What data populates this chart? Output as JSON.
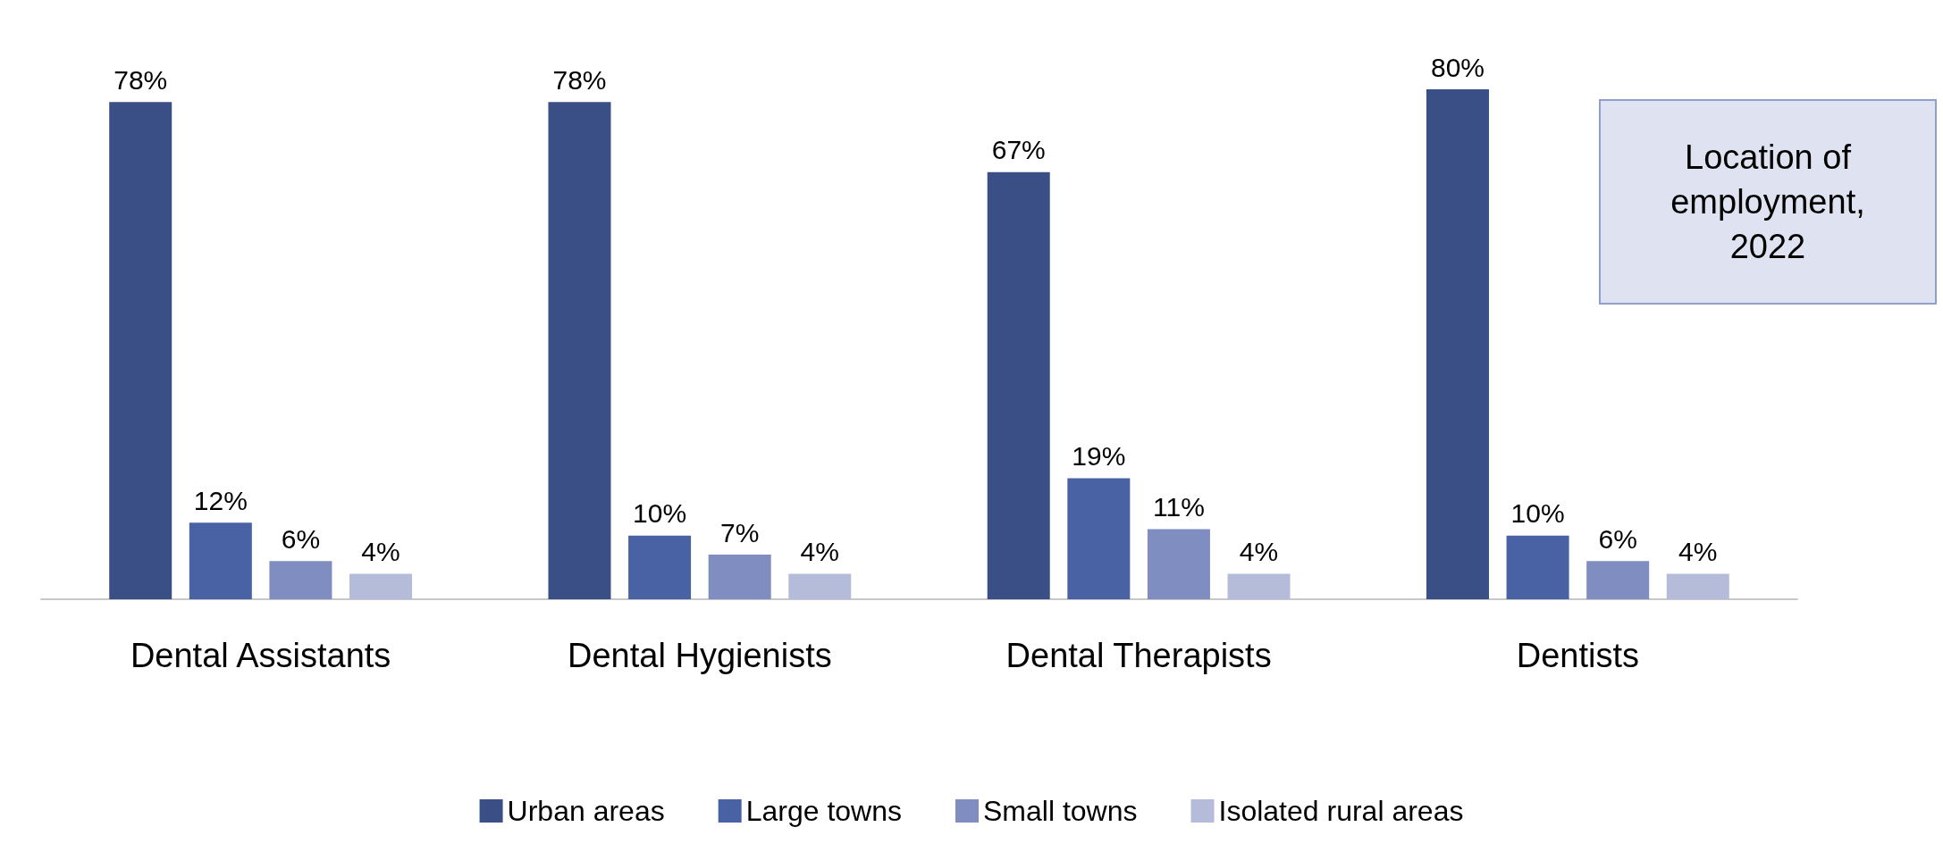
{
  "chart_data": {
    "type": "bar",
    "title": "Location of employment, 2022",
    "categories": [
      "Dental Assistants",
      "Dental Hygienists",
      "Dental Therapists",
      "Dentists"
    ],
    "series": [
      {
        "name": "Urban areas",
        "color": "#3a4f85",
        "values": [
          78,
          78,
          67,
          80
        ],
        "value_labels": [
          "78%",
          "78%",
          "67%",
          "80%"
        ]
      },
      {
        "name": "Large towns",
        "color": "#4862a3",
        "values": [
          12,
          10,
          19,
          10
        ],
        "value_labels": [
          "12%",
          "10%",
          "19%",
          "10%"
        ]
      },
      {
        "name": "Small towns",
        "color": "#7f8dc0",
        "values": [
          6,
          7,
          11,
          6
        ],
        "value_labels": [
          "6%",
          "7%",
          "11%",
          "6%"
        ]
      },
      {
        "name": "Isolated rural areas",
        "color": "#b4bcd9",
        "values": [
          4,
          4,
          4,
          4
        ],
        "value_labels": [
          "4%",
          "4%",
          "4%",
          "4%"
        ]
      }
    ],
    "legend": "bottom"
  }
}
